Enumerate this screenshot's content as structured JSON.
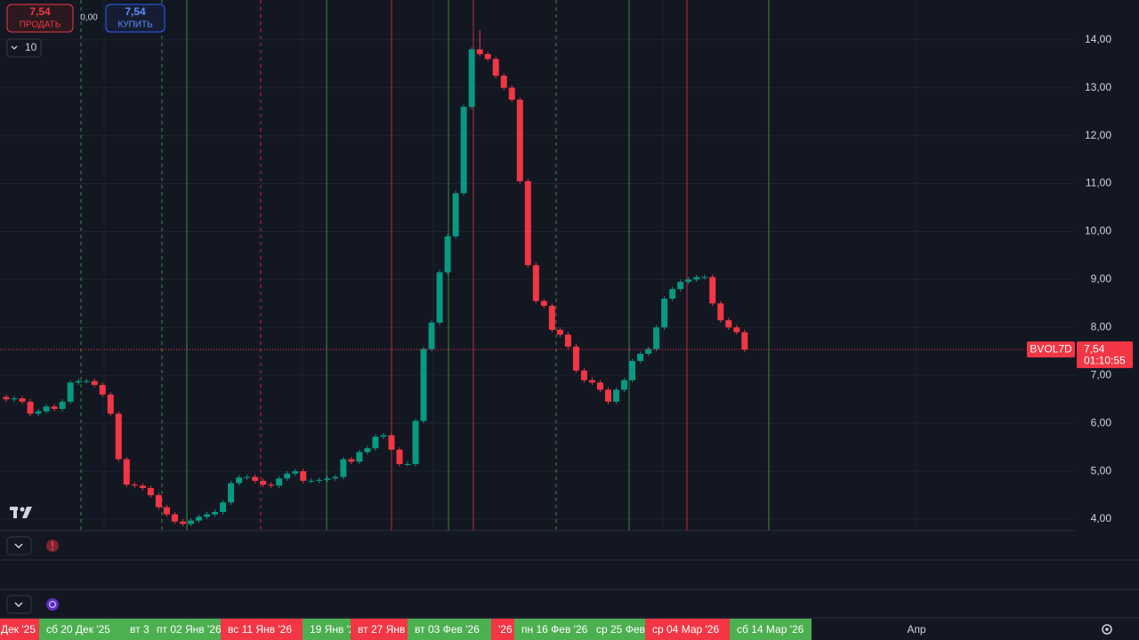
{
  "chart_data": {
    "type": "candlestick",
    "symbol": "BVOL7D",
    "last_price": {
      "value": 7.54,
      "label": "7,54"
    },
    "countdown": "01:10:55",
    "up_color": "#089981",
    "down_color": "#f23645",
    "sell": {
      "price": "7,54",
      "label": "ПРОДАТЬ"
    },
    "spread": "0,00",
    "buy": {
      "price": "7,54",
      "label": "КУПИТЬ"
    },
    "quantity": "10",
    "ylim": [
      3.76,
      14.83
    ],
    "yticks": [
      {
        "value": 4,
        "label": "4,00"
      },
      {
        "value": 5,
        "label": "5,00"
      },
      {
        "value": 6,
        "label": "6,00"
      },
      {
        "value": 7,
        "label": "7,00"
      },
      {
        "value": 8,
        "label": "8,00"
      },
      {
        "value": 9,
        "label": "9,00"
      },
      {
        "value": 10,
        "label": "10,00"
      },
      {
        "value": 11,
        "label": "11,00"
      },
      {
        "value": 12,
        "label": "12,00"
      },
      {
        "value": 13,
        "label": "13,00"
      },
      {
        "value": 14,
        "label": "14,00"
      }
    ],
    "time_labels": [
      {
        "text": "Дек '25",
        "color": "#f23645"
      },
      {
        "text": "сб 20 Дек '25",
        "color": "#4caf50"
      },
      {
        "text": "вт 3",
        "color": "#4caf50"
      },
      {
        "text": "пт 02 Янв '26",
        "color": "#4caf50"
      },
      {
        "text": "вс 11 Янв '26",
        "color": "#f23645"
      },
      {
        "text": "19 Янв '2",
        "color": "#4caf50"
      },
      {
        "text": "вт 27 Янв",
        "color": "#f23645"
      },
      {
        "text": "вт 03 Фев '26",
        "color": "#4caf50"
      },
      {
        "text": "'26",
        "color": "#f23645"
      },
      {
        "text": "пн 16 Фев '26",
        "color": "#4caf50"
      },
      {
        "text": "ср 25 Фев",
        "color": "#4caf50"
      },
      {
        "text": "ср 04 Мар '26",
        "color": "#f23645"
      },
      {
        "text": "сб 14 Мар '26",
        "color": "#4caf50"
      },
      {
        "text": "Апр",
        "color": null
      }
    ],
    "open": [
      6.55,
      6.5,
      6.52,
      6.45,
      6.2,
      6.25,
      6.35,
      6.3,
      6.45,
      6.85,
      6.88,
      6.88,
      6.8,
      6.6,
      6.2,
      5.25,
      4.72,
      4.7,
      4.65,
      4.5,
      4.25,
      4.1,
      3.95,
      3.9,
      3.97,
      4.05,
      4.1,
      4.15,
      4.35,
      4.75,
      4.87,
      4.88,
      4.8,
      4.72,
      4.7,
      4.85,
      4.95,
      5.0,
      4.8,
      4.8,
      4.82,
      4.85,
      4.88,
      5.25,
      5.2,
      5.4,
      5.48,
      5.72,
      5.75,
      5.45,
      5.15,
      5.15,
      6.05,
      7.55,
      8.1,
      9.15,
      9.9,
      10.8,
      12.6,
      13.8,
      13.7,
      13.6,
      13.25,
      13.0,
      12.75,
      11.05,
      9.3,
      8.55,
      8.45,
      7.95,
      7.85,
      7.6,
      7.1,
      6.9,
      6.85,
      6.7,
      6.45,
      6.7,
      6.9,
      7.3,
      7.45,
      7.55,
      8.0,
      8.6,
      8.8,
      8.95,
      9.0,
      9.05,
      9.05,
      8.5,
      8.15,
      8.0,
      7.9
    ],
    "high": [
      6.6,
      6.57,
      6.57,
      6.5,
      6.3,
      6.4,
      6.4,
      6.5,
      6.9,
      6.93,
      6.93,
      6.93,
      6.85,
      6.65,
      6.25,
      5.3,
      4.77,
      4.75,
      4.7,
      4.55,
      4.3,
      4.15,
      4,
      4.02,
      4.1,
      4.15,
      4.2,
      4.4,
      4.8,
      4.92,
      4.93,
      4.93,
      4.85,
      4.77,
      4.9,
      5,
      5.05,
      5.05,
      4.85,
      4.87,
      4.9,
      4.93,
      5.3,
      5.3,
      5.45,
      5.53,
      5.77,
      5.8,
      5.8,
      5.5,
      5.2,
      6.1,
      7.6,
      8.15,
      9.2,
      9.95,
      10.85,
      12.65,
      13.85,
      14.2,
      13.75,
      13.65,
      13.3,
      13.05,
      12.8,
      11.1,
      9.35,
      8.6,
      8.5,
      8,
      7.9,
      7.65,
      7.15,
      6.95,
      6.9,
      6.75,
      6.75,
      6.95,
      7.35,
      7.5,
      7.6,
      8.05,
      8.65,
      8.85,
      9,
      9.05,
      9.1,
      9.1,
      9.1,
      8.55,
      8.2,
      8.05,
      7.95
    ],
    "low": [
      6.45,
      6.45,
      6.4,
      6.15,
      6.15,
      6.2,
      6.25,
      6.25,
      6.4,
      6.8,
      6.83,
      6.75,
      6.55,
      6.15,
      5.2,
      4.67,
      4.65,
      4.6,
      4.45,
      4.2,
      4.05,
      3.9,
      3.85,
      3.85,
      3.92,
      4,
      4.05,
      4.1,
      4.3,
      4.7,
      4.82,
      4.75,
      4.67,
      4.65,
      4.65,
      4.8,
      4.9,
      4.75,
      4.75,
      4.75,
      4.77,
      4.8,
      4.83,
      5.15,
      5.15,
      5.35,
      5.43,
      5.67,
      5.4,
      5.1,
      5.1,
      5.1,
      6,
      7.5,
      8.05,
      9.1,
      9.85,
      10.75,
      12.55,
      13.65,
      13.55,
      13.2,
      12.95,
      12.7,
      11,
      9.25,
      8.5,
      8.4,
      7.9,
      7.8,
      7.55,
      7.05,
      6.85,
      6.8,
      6.65,
      6.4,
      6.4,
      6.65,
      6.85,
      7.25,
      7.4,
      7.5,
      7.95,
      8.55,
      8.75,
      8.9,
      8.95,
      9,
      8.45,
      8.1,
      7.95,
      7.85,
      7.49
    ],
    "close": [
      6.5,
      6.52,
      6.45,
      6.2,
      6.25,
      6.35,
      6.3,
      6.45,
      6.85,
      6.88,
      6.88,
      6.8,
      6.6,
      6.2,
      5.25,
      4.72,
      4.7,
      4.65,
      4.5,
      4.25,
      4.1,
      3.95,
      3.9,
      3.97,
      4.05,
      4.1,
      4.15,
      4.35,
      4.75,
      4.87,
      4.88,
      4.8,
      4.72,
      4.7,
      4.85,
      4.95,
      5.0,
      4.8,
      4.8,
      4.82,
      4.85,
      4.88,
      5.25,
      5.2,
      5.4,
      5.48,
      5.72,
      5.75,
      5.45,
      5.15,
      5.15,
      6.05,
      7.55,
      8.1,
      9.15,
      9.9,
      10.8,
      12.6,
      13.8,
      13.7,
      13.6,
      13.25,
      13.0,
      12.75,
      11.05,
      9.3,
      8.55,
      8.45,
      7.95,
      7.85,
      7.6,
      7.1,
      6.9,
      6.85,
      6.7,
      6.45,
      6.7,
      6.9,
      7.3,
      7.45,
      7.55,
      8.0,
      8.6,
      8.8,
      8.95,
      9.0,
      9.05,
      9.05,
      8.5,
      8.15,
      8.0,
      7.9,
      7.54
    ]
  }
}
